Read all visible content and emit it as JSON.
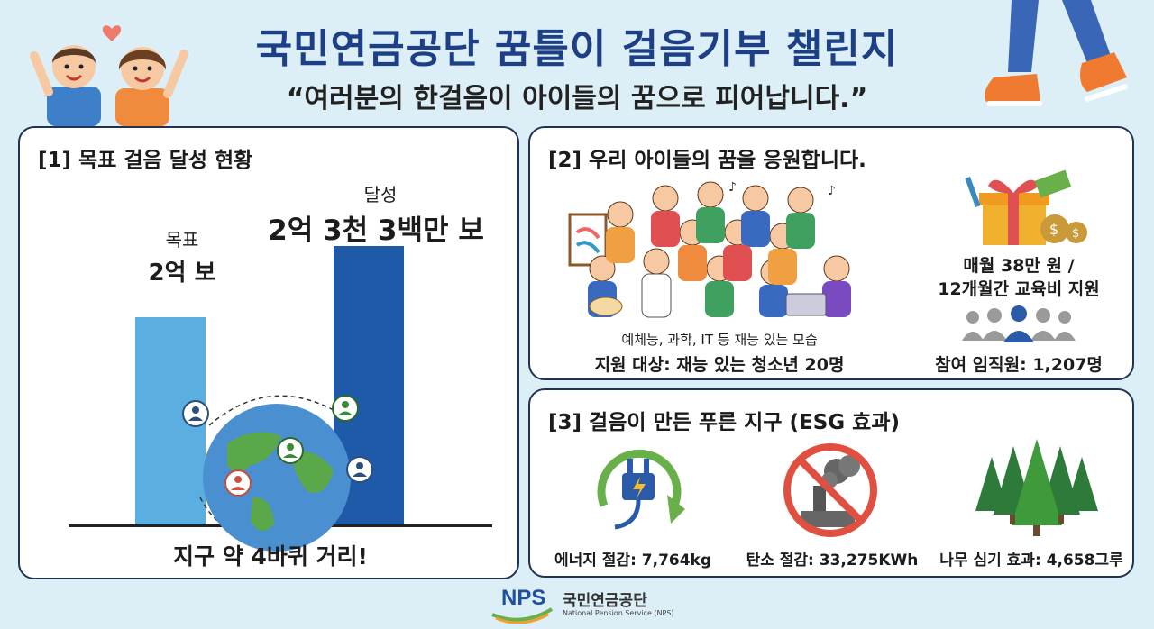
{
  "header": {
    "title": "국민연금공단 꿈틀이 걸음기부 챌린지",
    "subtitle": "“여러분의 한걸음이 아이들의 꿈으로 피어납니다.”"
  },
  "section1": {
    "title": "[1] 목표 걸음 달성 현황",
    "goal_label": "목표",
    "goal_value": "2억 보",
    "achieved_label": "달성",
    "achieved_value": "2억 3천 3백만 보",
    "caption": "지구 약 4바퀴 거리!",
    "chart": {
      "goal_steps": 200000000,
      "achieved_steps": 233000000
    }
  },
  "section2": {
    "title": "[2] 우리 아이들의 꿈을 응원합니다.",
    "image_caption": "예체능, 과학, IT 등 재능 있는 모습",
    "target": "지원 대상: 재능 있는 청소년 20명",
    "support_line1": "매월 38만 원 /",
    "support_line2": "12개월간 교육비 지원",
    "participants": "참여 임직원: 1,207명"
  },
  "section3": {
    "title": "[3] 걸음이 만든 푸른 지구 (ESG 효과)",
    "energy": "에너지 절감: 7,764kg",
    "carbon": "탄소 절감: 33,275KWh",
    "trees": "나무 심기 효과: 4,658그루"
  },
  "footer": {
    "logo_text": "NPS",
    "org_name": "국민연금공단",
    "org_name_en": "National Pension Service (NPS)"
  },
  "colors": {
    "title": "#1c3f86",
    "goal_bar": "#5aafe0",
    "achieved_bar": "#1e5aa8",
    "green": "#3f9a3c"
  }
}
